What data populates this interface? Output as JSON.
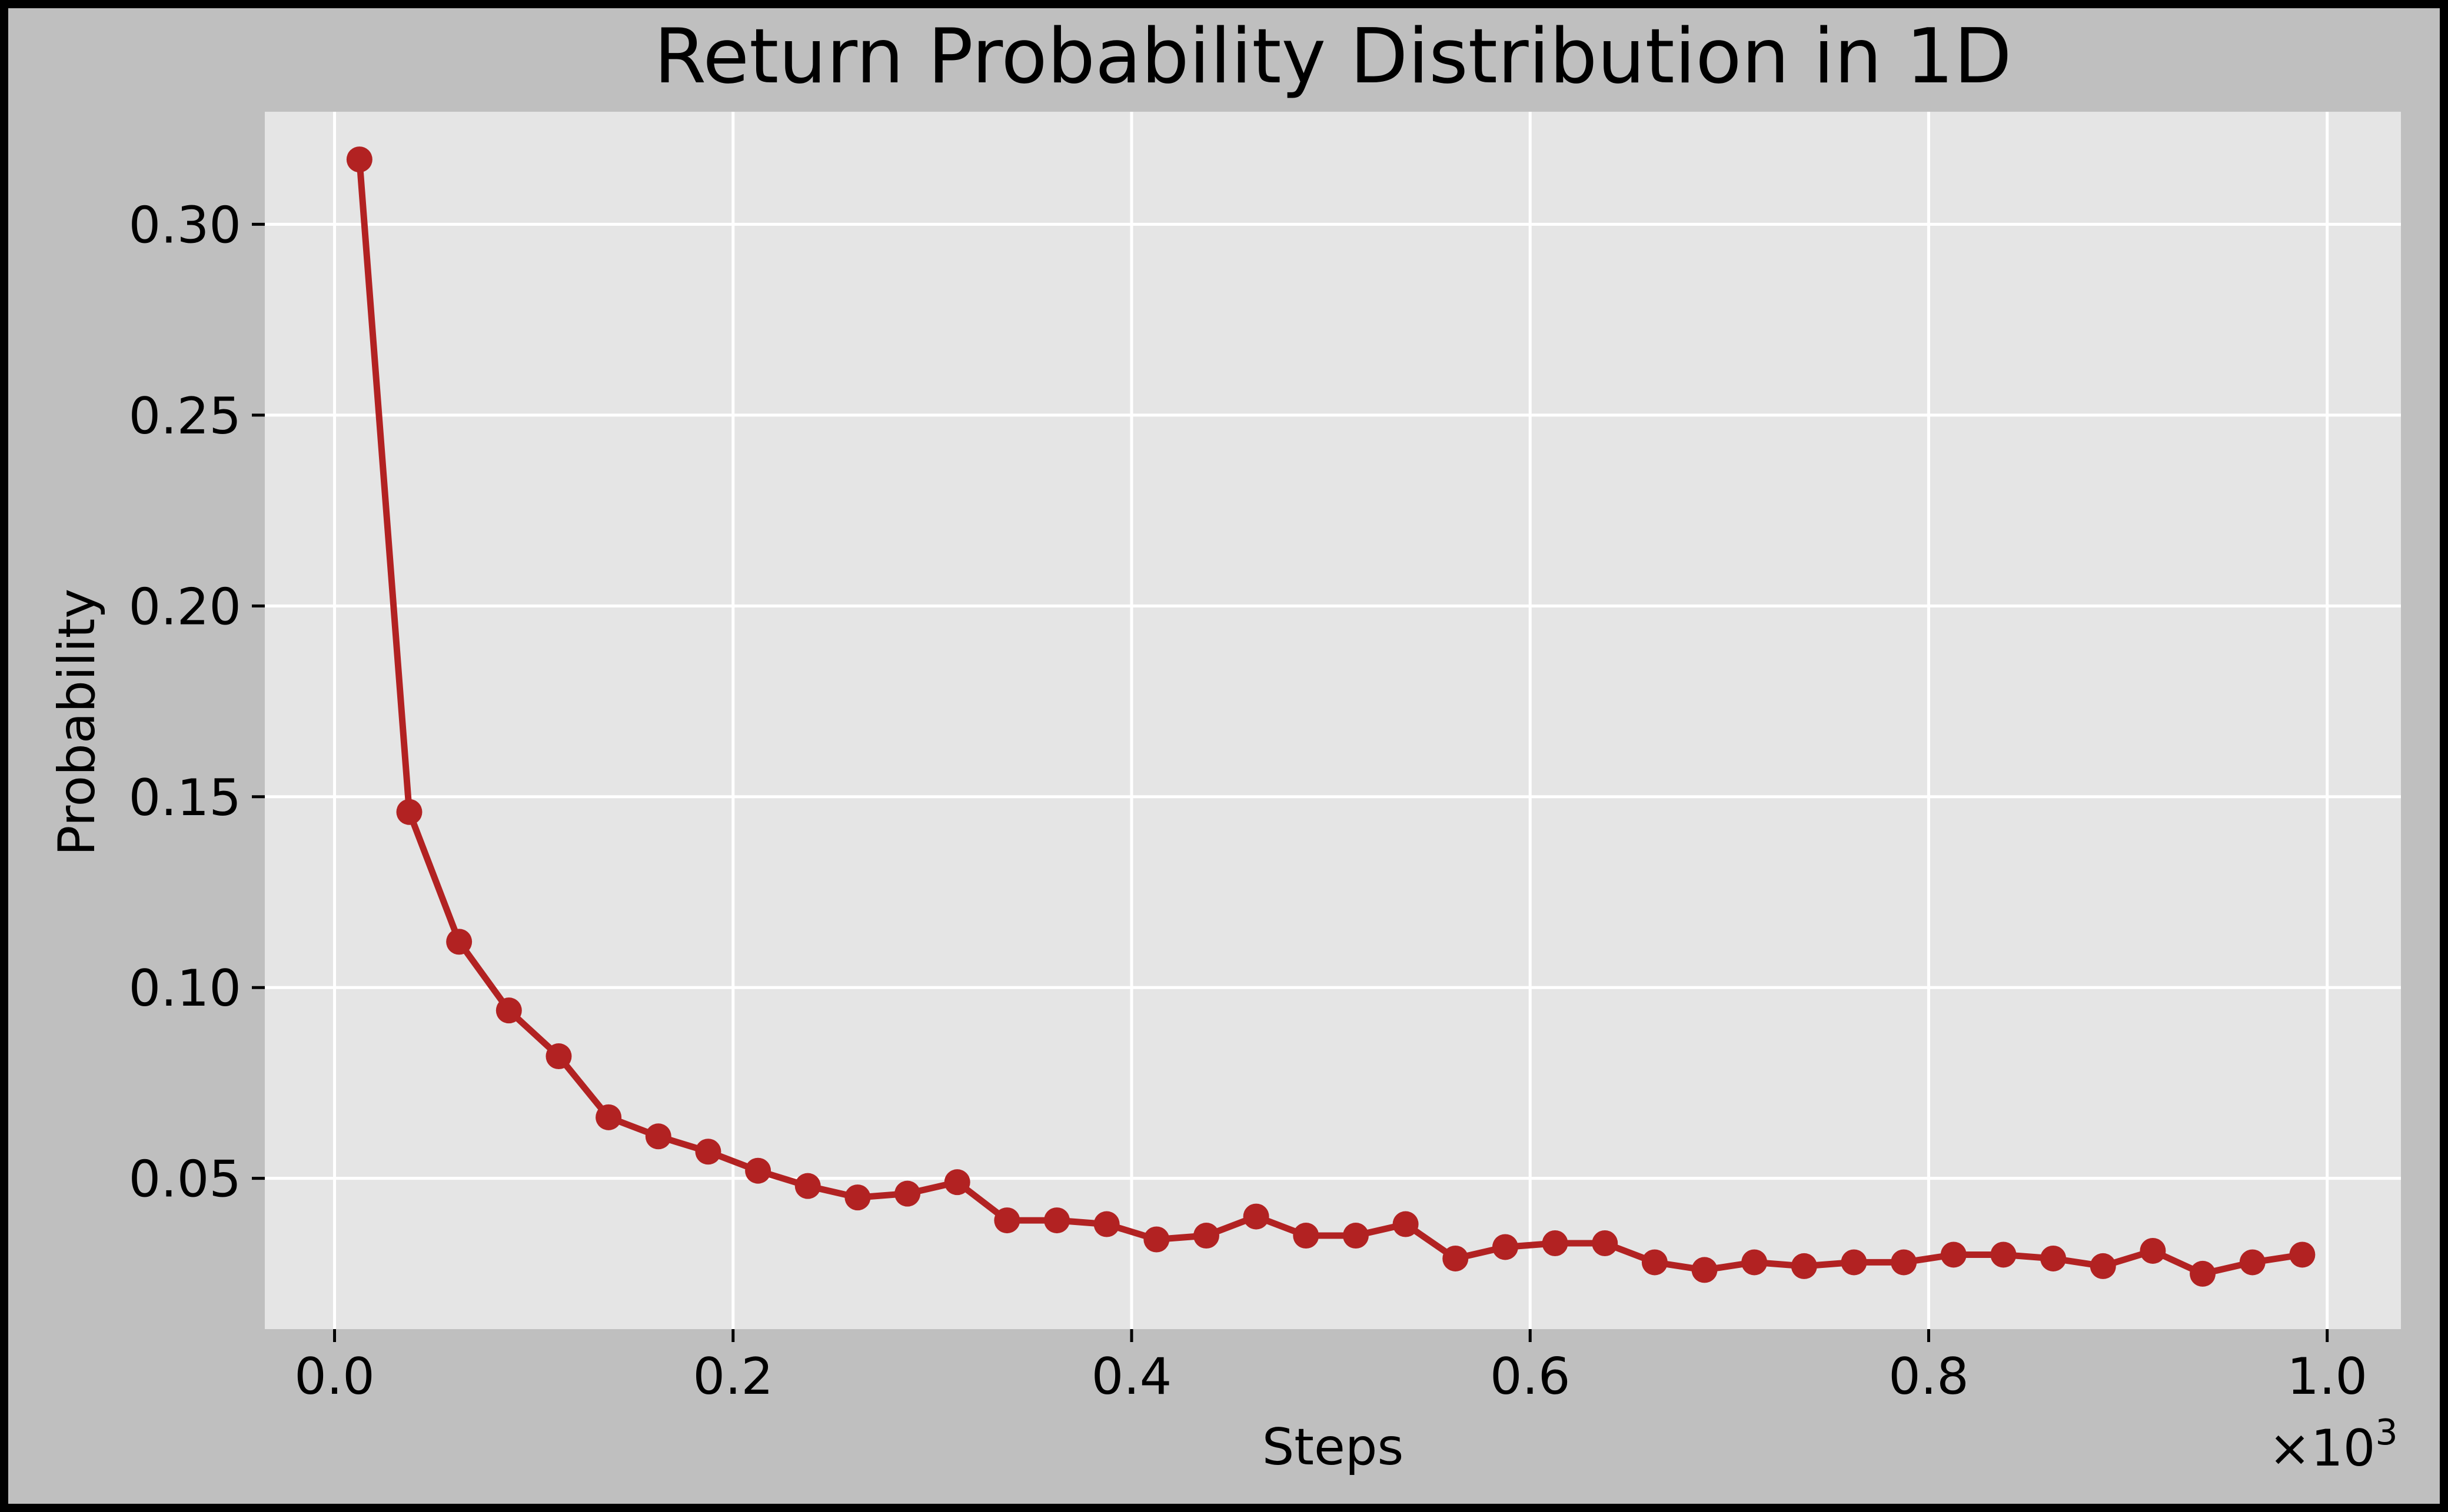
{
  "chart_data": {
    "type": "line",
    "title": "Return Probability Distribution in 1D",
    "xlabel": "Steps",
    "ylabel": "Probability",
    "x_offset_text": "×10",
    "x_offset_exponent": "3",
    "xlim": [
      -0.035,
      1.037
    ],
    "ylim": [
      0.0105,
      0.3295
    ],
    "x_ticks": [
      0.0,
      0.2,
      0.4,
      0.6,
      0.8,
      1.0
    ],
    "x_tick_labels": [
      "0.0",
      "0.2",
      "0.4",
      "0.6",
      "0.8",
      "1.0"
    ],
    "y_ticks": [
      0.05,
      0.1,
      0.15,
      0.2,
      0.25,
      0.3
    ],
    "y_tick_labels": [
      "0.05",
      "0.10",
      "0.15",
      "0.20",
      "0.25",
      "0.30"
    ],
    "grid": true,
    "colors": {
      "figure_background": "#bfbfbf",
      "axes_background": "#e5e5e5",
      "grid": "#ffffff",
      "series": "#b22222",
      "frame": "#000000"
    },
    "series": [
      {
        "x": [
          0.0125,
          0.0375,
          0.0625,
          0.0875,
          0.1125,
          0.1375,
          0.1625,
          0.1875,
          0.2125,
          0.2375,
          0.2625,
          0.2875,
          0.3125,
          0.3375,
          0.3625,
          0.3875,
          0.4125,
          0.4375,
          0.4625,
          0.4875,
          0.5125,
          0.5375,
          0.5625,
          0.5875,
          0.6125,
          0.6375,
          0.6625,
          0.6875,
          0.7125,
          0.7375,
          0.7625,
          0.7875,
          0.8125,
          0.8375,
          0.8625,
          0.8875,
          0.9125,
          0.9375,
          0.9625,
          0.9875
        ],
        "y": [
          0.317,
          0.146,
          0.112,
          0.094,
          0.082,
          0.066,
          0.061,
          0.057,
          0.052,
          0.048,
          0.045,
          0.046,
          0.049,
          0.039,
          0.039,
          0.038,
          0.034,
          0.035,
          0.04,
          0.035,
          0.035,
          0.038,
          0.029,
          0.032,
          0.033,
          0.033,
          0.028,
          0.026,
          0.028,
          0.027,
          0.028,
          0.028,
          0.03,
          0.03,
          0.029,
          0.027,
          0.031,
          0.025,
          0.028,
          0.03
        ]
      }
    ]
  }
}
